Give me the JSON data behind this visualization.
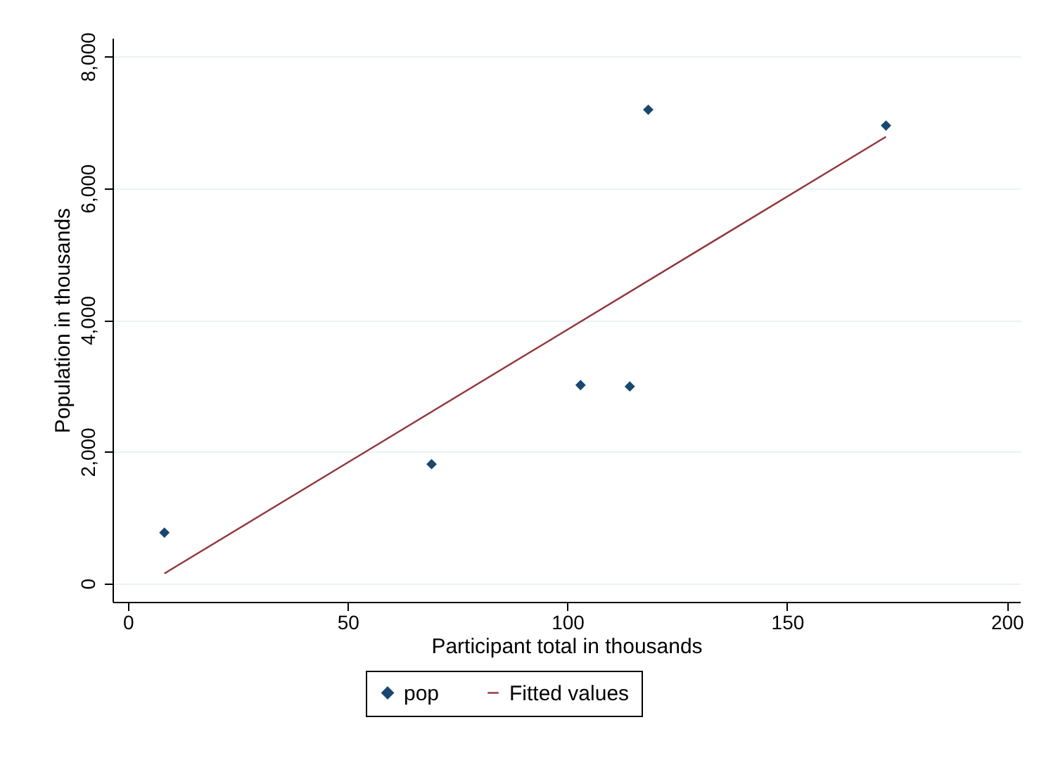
{
  "chart_data": {
    "type": "scatter",
    "xlabel": "Participant total in thousands",
    "ylabel": "Population in thousands",
    "xlim": [
      -3.5,
      203
    ],
    "ylim": [
      -280,
      8280
    ],
    "xticks": [
      0,
      50,
      100,
      150,
      200
    ],
    "yticks": [
      0,
      {
        "value": 2000,
        "label": "2,000"
      },
      {
        "value": 4000,
        "label": "4,000"
      },
      {
        "value": 6000,
        "label": "6,000"
      },
      {
        "value": 8000,
        "label": "8,000"
      }
    ],
    "grid": "y",
    "legend": "bottom",
    "series": [
      {
        "name": "pop",
        "color": "#1a476f",
        "marker": "diamond",
        "x": [
          8.3,
          69.1,
          103,
          114.2,
          118.4,
          172.5
        ],
        "values": [
          770,
          1810,
          3010,
          2990,
          7190,
          6950
        ]
      },
      {
        "name": "Fitted values",
        "type": "line",
        "color": "#90353b",
        "x": [
          8.3,
          172.5
        ],
        "values": [
          150,
          6780
        ]
      }
    ]
  }
}
